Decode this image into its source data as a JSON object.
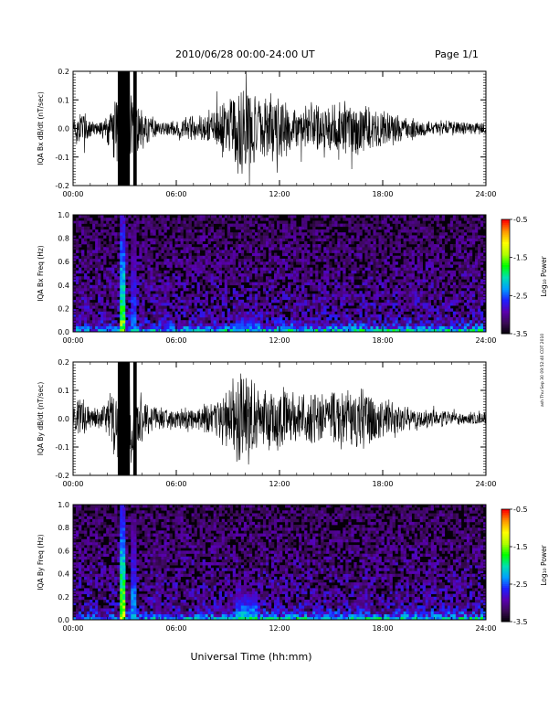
{
  "header": {
    "title": "2010/06/28  00:00-24:00 UT",
    "page": "Page 1/1"
  },
  "xaxis": {
    "label": "Universal Time (hh:mm)",
    "ticks": [
      "00:00",
      "06:00",
      "12:00",
      "18:00",
      "24:00"
    ],
    "range_hours": [
      0,
      24
    ]
  },
  "side_note": "ash Thu Sep 30 09:52:40 CDT 2010",
  "colorbar": {
    "label": "Log₁₀ Power",
    "ticks": [
      "-0.5",
      "-1.5",
      "-2.5",
      "-3.5"
    ],
    "range": [
      -3.5,
      -0.5
    ],
    "colors": [
      "#000000",
      "#3a0a55",
      "#5a00b0",
      "#1f1fff",
      "#00a0ff",
      "#00e0b0",
      "#00ff00",
      "#b0ff00",
      "#ffff00",
      "#ff9900",
      "#ff0000"
    ]
  },
  "chart_data": [
    {
      "type": "line",
      "ylabel": "IQA Bx dB/dt (nT/sec)",
      "ylim": [
        -0.2,
        0.2
      ],
      "yticks": [
        "0.2",
        "0.1",
        "0.0",
        "-0.1",
        "-0.2"
      ],
      "xlim": [
        0,
        24
      ],
      "x_unit": "hours UT",
      "amplitude_envelope": [
        {
          "x": 0.0,
          "y": 0.05
        },
        {
          "x": 0.5,
          "y": 0.08
        },
        {
          "x": 1.0,
          "y": 0.04
        },
        {
          "x": 1.5,
          "y": 0.03
        },
        {
          "x": 2.0,
          "y": 0.06
        },
        {
          "x": 2.5,
          "y": 0.13
        },
        {
          "x": 2.8,
          "y": 0.25
        },
        {
          "x": 3.2,
          "y": 0.25
        },
        {
          "x": 3.5,
          "y": 0.12
        },
        {
          "x": 4.0,
          "y": 0.08
        },
        {
          "x": 4.5,
          "y": 0.05
        },
        {
          "x": 5.0,
          "y": 0.03
        },
        {
          "x": 5.5,
          "y": 0.03
        },
        {
          "x": 6.0,
          "y": 0.03
        },
        {
          "x": 7.0,
          "y": 0.05
        },
        {
          "x": 8.0,
          "y": 0.07
        },
        {
          "x": 9.0,
          "y": 0.12
        },
        {
          "x": 9.5,
          "y": 0.16
        },
        {
          "x": 10.0,
          "y": 0.2
        },
        {
          "x": 10.5,
          "y": 0.15
        },
        {
          "x": 11.0,
          "y": 0.11
        },
        {
          "x": 11.5,
          "y": 0.13
        },
        {
          "x": 12.0,
          "y": 0.15
        },
        {
          "x": 12.5,
          "y": 0.09
        },
        {
          "x": 13.0,
          "y": 0.08
        },
        {
          "x": 14.0,
          "y": 0.1
        },
        {
          "x": 15.0,
          "y": 0.11
        },
        {
          "x": 16.0,
          "y": 0.12
        },
        {
          "x": 17.0,
          "y": 0.09
        },
        {
          "x": 18.0,
          "y": 0.07
        },
        {
          "x": 19.0,
          "y": 0.05
        },
        {
          "x": 20.0,
          "y": 0.04
        },
        {
          "x": 21.0,
          "y": 0.03
        },
        {
          "x": 22.0,
          "y": 0.03
        },
        {
          "x": 23.0,
          "y": 0.025
        },
        {
          "x": 24.0,
          "y": 0.02
        }
      ]
    },
    {
      "type": "heatmap",
      "ylabel": "IQA Bx Freq (Hz)",
      "ylim": [
        0,
        1.0
      ],
      "yticks": [
        "1.0",
        "0.8",
        "0.6",
        "0.4",
        "0.2",
        "0.0"
      ],
      "xlim": [
        0,
        24
      ],
      "zlabel": "Log₁₀ Power",
      "zlim": [
        -3.5,
        -0.5
      ],
      "features": [
        {
          "x_start": 2.8,
          "x_end": 3.1,
          "f_max": 1.0,
          "peak": -1.2
        },
        {
          "x_start": 3.4,
          "x_end": 3.6,
          "f_max": 0.9,
          "peak": -2.2
        },
        {
          "x_start": 4.8,
          "x_end": 5.1,
          "f_max": 0.6,
          "peak": -3.0
        },
        {
          "x_start": 9.5,
          "x_end": 10.7,
          "f_max": 0.15,
          "peak": -2.0
        },
        {
          "x_start": 10.7,
          "x_end": 24.0,
          "f_max": 0.05,
          "peak": -2.6
        }
      ]
    },
    {
      "type": "line",
      "ylabel": "IQA By dB/dt (nT/sec)",
      "ylim": [
        -0.2,
        0.2
      ],
      "yticks": [
        "0.2",
        "0.1",
        "0.0",
        "-0.1",
        "-0.2"
      ],
      "xlim": [
        0,
        24
      ],
      "x_unit": "hours UT",
      "amplitude_envelope": [
        {
          "x": 0.0,
          "y": 0.05
        },
        {
          "x": 0.5,
          "y": 0.09
        },
        {
          "x": 1.0,
          "y": 0.05
        },
        {
          "x": 1.5,
          "y": 0.04
        },
        {
          "x": 2.0,
          "y": 0.07
        },
        {
          "x": 2.5,
          "y": 0.16
        },
        {
          "x": 2.8,
          "y": 0.25
        },
        {
          "x": 3.2,
          "y": 0.25
        },
        {
          "x": 3.5,
          "y": 0.15
        },
        {
          "x": 4.0,
          "y": 0.1
        },
        {
          "x": 4.5,
          "y": 0.06
        },
        {
          "x": 5.0,
          "y": 0.05
        },
        {
          "x": 5.5,
          "y": 0.04
        },
        {
          "x": 6.0,
          "y": 0.04
        },
        {
          "x": 7.0,
          "y": 0.05
        },
        {
          "x": 8.0,
          "y": 0.06
        },
        {
          "x": 9.0,
          "y": 0.12
        },
        {
          "x": 9.5,
          "y": 0.18
        },
        {
          "x": 10.0,
          "y": 0.2
        },
        {
          "x": 10.5,
          "y": 0.16
        },
        {
          "x": 11.0,
          "y": 0.12
        },
        {
          "x": 11.5,
          "y": 0.12
        },
        {
          "x": 12.0,
          "y": 0.15
        },
        {
          "x": 12.5,
          "y": 0.09
        },
        {
          "x": 13.0,
          "y": 0.08
        },
        {
          "x": 14.0,
          "y": 0.1
        },
        {
          "x": 15.0,
          "y": 0.11
        },
        {
          "x": 16.0,
          "y": 0.12
        },
        {
          "x": 17.0,
          "y": 0.13
        },
        {
          "x": 18.0,
          "y": 0.08
        },
        {
          "x": 19.0,
          "y": 0.05
        },
        {
          "x": 20.0,
          "y": 0.04
        },
        {
          "x": 21.0,
          "y": 0.035
        },
        {
          "x": 22.0,
          "y": 0.03
        },
        {
          "x": 23.0,
          "y": 0.025
        },
        {
          "x": 24.0,
          "y": 0.02
        }
      ]
    },
    {
      "type": "heatmap",
      "ylabel": "IQA By Freq (Hz)",
      "ylim": [
        0,
        1.0
      ],
      "yticks": [
        "1.0",
        "0.8",
        "0.6",
        "0.4",
        "0.2",
        "0.0"
      ],
      "xlim": [
        0,
        24
      ],
      "zlabel": "Log₁₀ Power",
      "zlim": [
        -3.5,
        -0.5
      ],
      "features": [
        {
          "x_start": 2.8,
          "x_end": 3.1,
          "f_max": 1.0,
          "peak": -1.0
        },
        {
          "x_start": 3.4,
          "x_end": 3.6,
          "f_max": 0.9,
          "peak": -2.0
        },
        {
          "x_start": 4.8,
          "x_end": 5.1,
          "f_max": 0.7,
          "peak": -2.8
        },
        {
          "x_start": 9.5,
          "x_end": 10.7,
          "f_max": 0.25,
          "peak": -1.8
        },
        {
          "x_start": 16.5,
          "x_end": 17.3,
          "f_max": 0.3,
          "peak": -2.7
        },
        {
          "x_start": 10.7,
          "x_end": 24.0,
          "f_max": 0.06,
          "peak": -2.5
        }
      ]
    }
  ]
}
